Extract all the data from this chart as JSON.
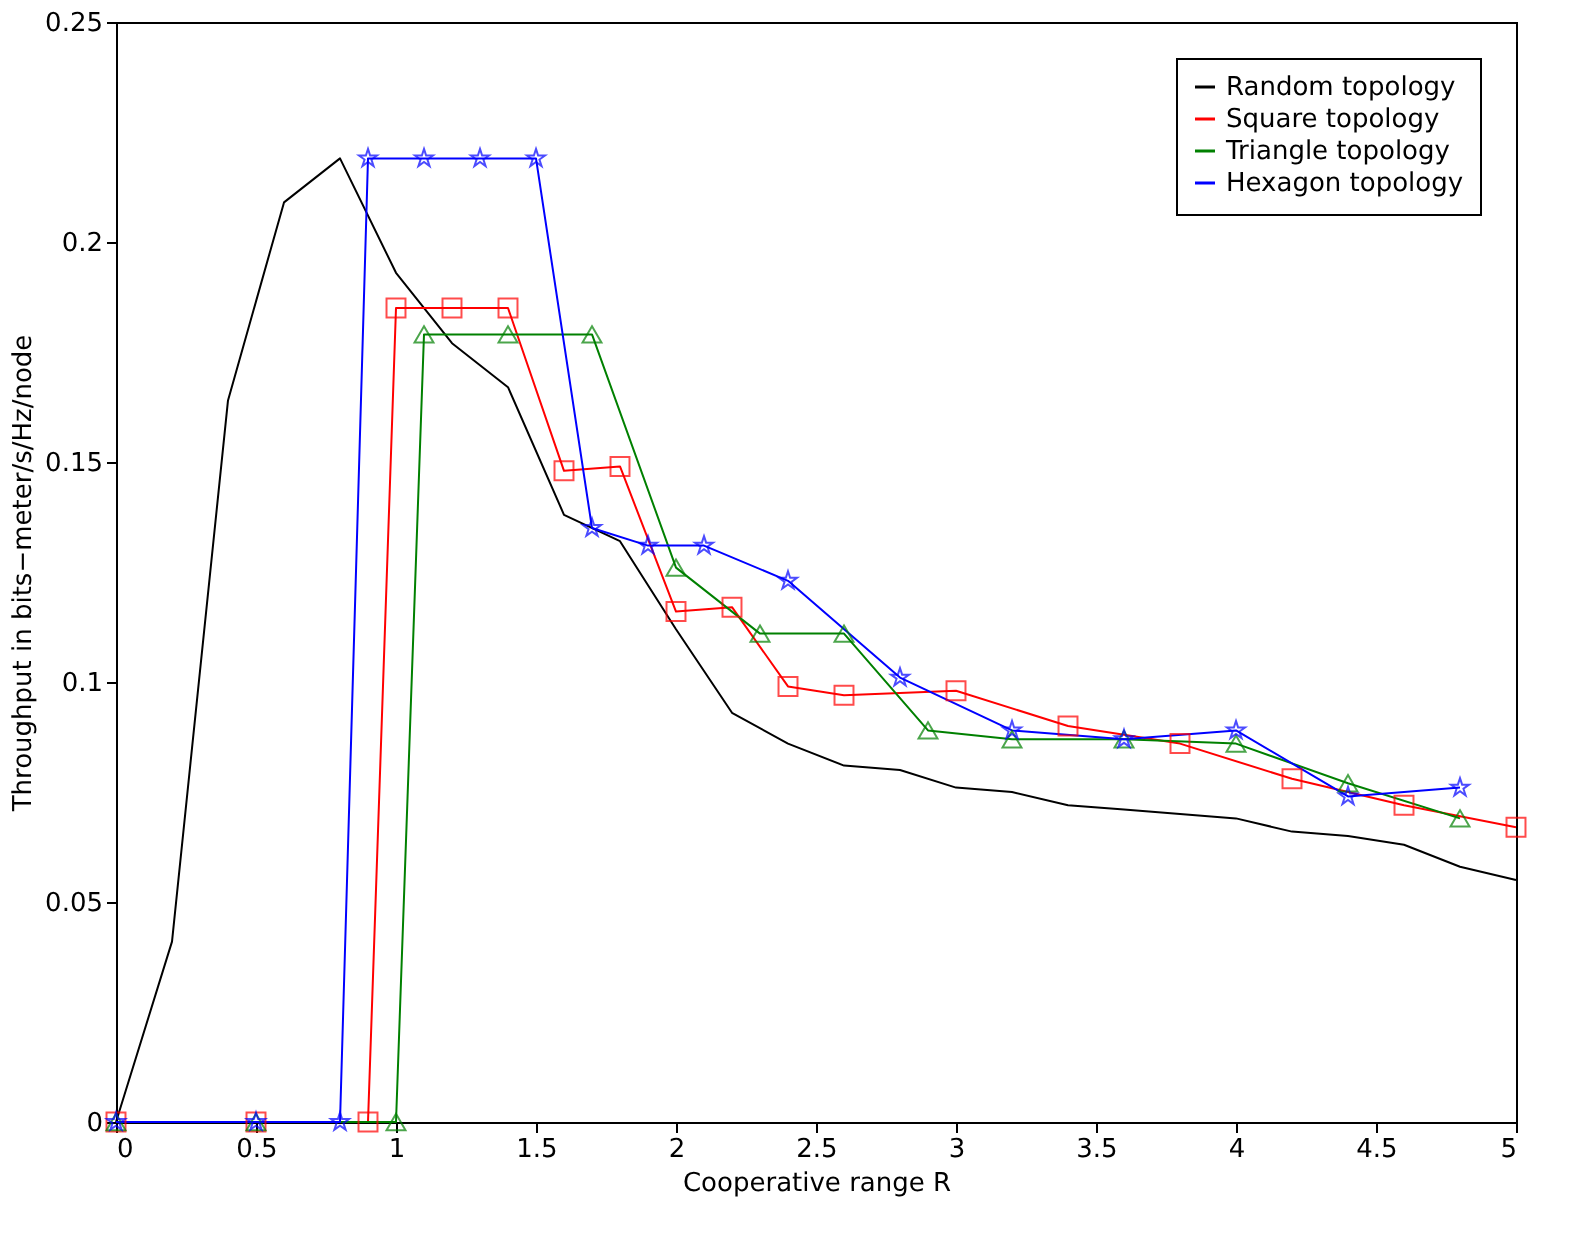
{
  "chart_data": {
    "type": "line",
    "xlabel": "Cooperative range R",
    "ylabel": "Throughput in bits−meter/s/Hz/node",
    "xlim": [
      0,
      5
    ],
    "xticks": [
      0,
      0.5,
      1,
      1.5,
      2,
      2.5,
      3,
      3.5,
      4,
      4.5,
      5
    ],
    "ylim": [
      0,
      0.25
    ],
    "yticks": [
      0,
      0.05,
      0.1,
      0.15,
      0.2,
      0.25
    ],
    "grid": false,
    "legend": "top right",
    "series": [
      {
        "name": "Random topology",
        "color": "#000000",
        "marker": "none",
        "x": [
          0,
          0.2,
          0.4,
          0.6,
          0.8,
          1.0,
          1.2,
          1.4,
          1.6,
          1.8,
          2.0,
          2.2,
          2.4,
          2.6,
          2.8,
          3.0,
          3.2,
          3.4,
          3.6,
          3.8,
          4.0,
          4.2,
          4.4,
          4.6,
          4.8,
          5.0
        ],
        "values": [
          0,
          0.041,
          0.164,
          0.209,
          0.219,
          0.193,
          0.177,
          0.167,
          0.138,
          0.132,
          0.112,
          0.093,
          0.086,
          0.081,
          0.08,
          0.076,
          0.075,
          0.072,
          0.071,
          0.07,
          0.069,
          0.066,
          0.065,
          0.063,
          0.058,
          0.055
        ]
      },
      {
        "name": "Square topology",
        "color": "#ff0000",
        "marker": "square",
        "x": [
          0,
          0.5,
          0.9,
          1.0,
          1.2,
          1.4,
          1.6,
          1.8,
          2.0,
          2.2,
          2.4,
          2.6,
          3.0,
          3.4,
          3.8,
          4.2,
          4.6,
          5.0
        ],
        "values": [
          0,
          0,
          0,
          0.185,
          0.185,
          0.185,
          0.148,
          0.149,
          0.116,
          0.117,
          0.099,
          0.097,
          0.098,
          0.09,
          0.086,
          0.078,
          0.072,
          0.067
        ]
      },
      {
        "name": "Triangle topology",
        "color": "#008000",
        "marker": "triangle",
        "x": [
          0,
          0.5,
          1.0,
          1.1,
          1.4,
          1.7,
          2.0,
          2.3,
          2.6,
          2.9,
          3.2,
          3.6,
          4.0,
          4.4,
          4.8
        ],
        "values": [
          0,
          0,
          0,
          0.179,
          0.179,
          0.179,
          0.126,
          0.111,
          0.111,
          0.089,
          0.087,
          0.087,
          0.086,
          0.077,
          0.069
        ]
      },
      {
        "name": "Hexagon topology",
        "color": "#0000ff",
        "marker": "star",
        "x": [
          0,
          0.5,
          0.8,
          0.9,
          1.1,
          1.3,
          1.5,
          1.7,
          1.9,
          2.1,
          2.4,
          2.8,
          3.2,
          3.6,
          4.0,
          4.4,
          4.8
        ],
        "values": [
          0,
          0,
          0,
          0.219,
          0.219,
          0.219,
          0.219,
          0.135,
          0.131,
          0.131,
          0.123,
          0.101,
          0.089,
          0.087,
          0.089,
          0.074,
          0.076
        ]
      }
    ]
  }
}
